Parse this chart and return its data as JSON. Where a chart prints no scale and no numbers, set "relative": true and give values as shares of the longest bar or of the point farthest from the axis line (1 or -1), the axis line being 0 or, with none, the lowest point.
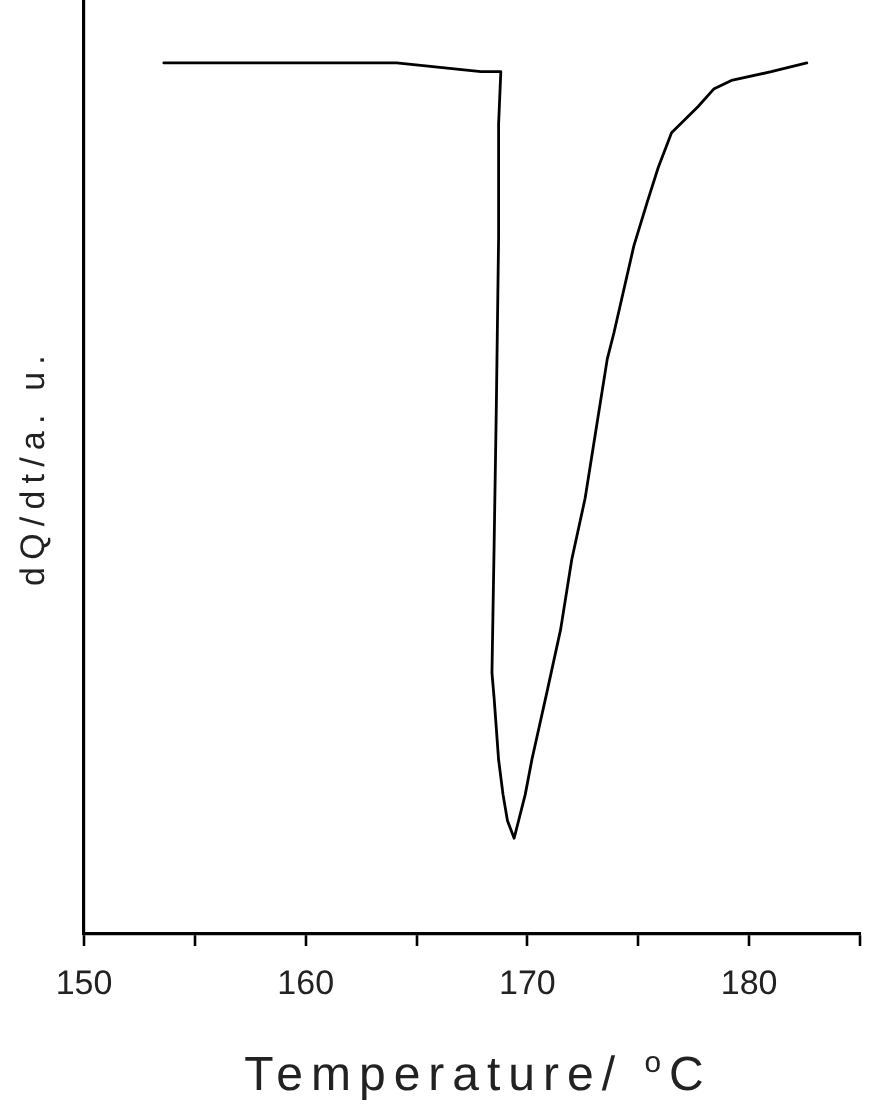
{
  "chart_data": {
    "type": "line",
    "xlabel": "Temperature/ $^{o}$C",
    "ylabel": "dQ/dt/a. u.",
    "relative": true,
    "x": [
      153.6,
      164.1,
      167.9,
      168.8,
      168.7,
      168.7,
      168.6,
      168.5,
      168.4,
      168.5,
      168.7,
      168.9,
      169.1,
      169.4,
      169.5,
      169.9,
      170.2,
      170.9,
      171.5,
      172.0,
      172.6,
      173.1,
      173.6,
      173.9,
      174.8,
      175.4,
      175.9,
      176.5,
      177.7,
      178.4,
      179.2,
      181.0,
      182.6
    ],
    "series": [
      {
        "color": "#000000",
        "values": [
          1.0,
          1.0,
          0.99,
          0.99,
          0.93,
          0.8,
          0.61,
          0.45,
          0.3,
          0.27,
          0.2,
          0.16,
          0.13,
          0.11,
          0.12,
          0.16,
          0.2,
          0.28,
          0.35,
          0.43,
          0.5,
          0.58,
          0.66,
          0.69,
          0.79,
          0.84,
          0.88,
          0.92,
          0.95,
          0.97,
          0.98,
          0.99,
          1.0
        ]
      }
    ],
    "xlim": [
      150,
      185
    ],
    "xticks": [
      150,
      {
        "value": 155,
        "label": null
      },
      160,
      {
        "value": 165,
        "label": null
      },
      170,
      {
        "value": 175,
        "label": null
      },
      180,
      {
        "value": 185,
        "label": null
      }
    ],
    "marker": "none",
    "line_style": "solid"
  }
}
